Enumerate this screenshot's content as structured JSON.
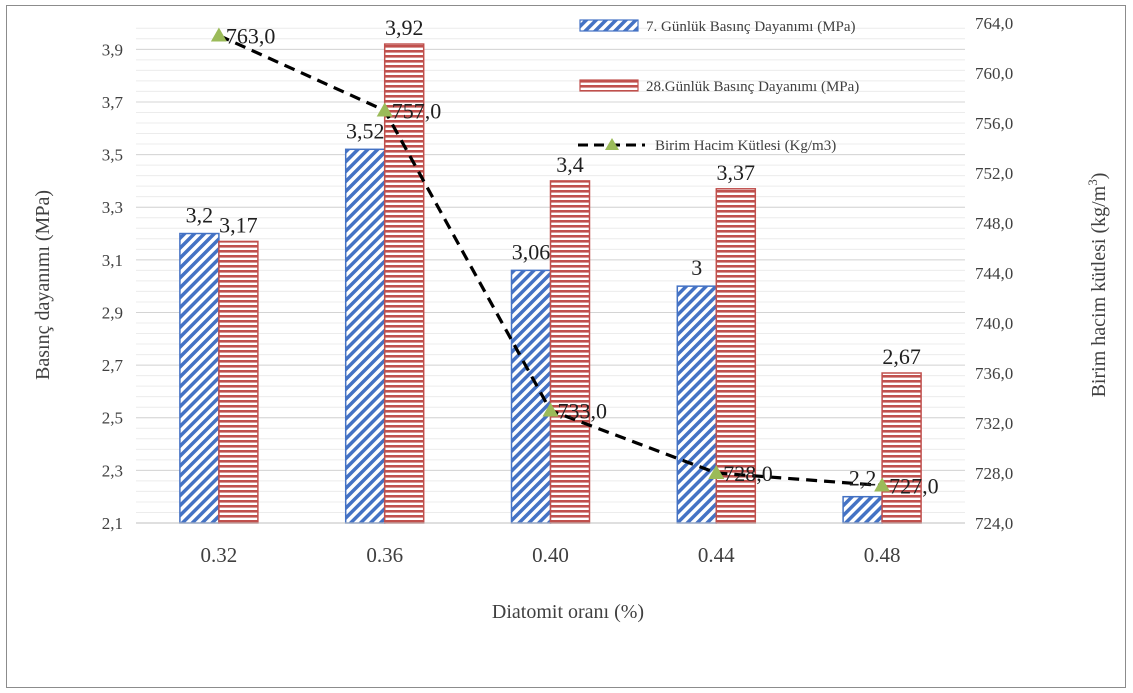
{
  "chart_data": {
    "type": "bar",
    "categories": [
      "0.32",
      "0.36",
      "0.40",
      "0.44",
      "0.48"
    ],
    "xlabel": "Diatomit oranı (%)",
    "ylabel": "Basınç dayanımı (MPa)",
    "y2label_main": "Birim hacim kütlesi (kg/m",
    "y2label_sup": "3",
    "y2label_close": ")",
    "ylim": [
      2.1,
      4.0
    ],
    "yticks": [
      "2,1",
      "2,3",
      "2,5",
      "2,7",
      "2,9",
      "3,1",
      "3,3",
      "3,5",
      "3,7",
      "3,9"
    ],
    "y2lim": [
      724.0,
      764.0
    ],
    "y2ticks": [
      "724,0",
      "728,0",
      "732,0",
      "736,0",
      "740,0",
      "744,0",
      "748,0",
      "752,0",
      "756,0",
      "760,0",
      "764,0"
    ],
    "grid": true,
    "legend_position": "top-right",
    "series": [
      {
        "name": "7. Günlük Basınç Dayanımı (MPa)",
        "kind": "bar",
        "axis": "left",
        "color": "#4472c4",
        "values": [
          3.2,
          3.52,
          3.06,
          3.0,
          2.2
        ],
        "labels": [
          "3,2",
          "3,52",
          "3,06",
          "3",
          "2,2"
        ]
      },
      {
        "name": "28.Günlük Basınç Dayanımı (MPa)",
        "kind": "bar",
        "axis": "left",
        "color": "#c0504d",
        "values": [
          3.17,
          3.92,
          3.4,
          3.37,
          2.67
        ],
        "labels": [
          "3,17",
          "3,92",
          "3,4",
          "3,37",
          "2,67"
        ]
      },
      {
        "name": "Birim Hacim Kütlesi (Kg/m3)",
        "kind": "line",
        "axis": "right",
        "color": "#9bbb59",
        "line_color": "#000000",
        "values": [
          763.0,
          757.0,
          733.0,
          728.0,
          727.0
        ],
        "labels": [
          "763,0",
          "757,0",
          "733,0",
          "728,0",
          "727,0"
        ]
      }
    ]
  }
}
